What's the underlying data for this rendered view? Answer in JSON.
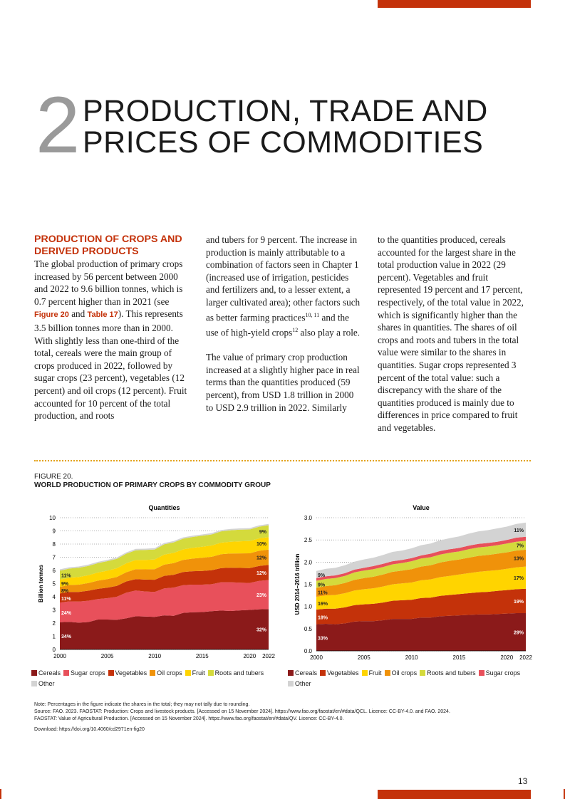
{
  "chapter": {
    "number": "2",
    "title_line1": "PRODUCTION, TRADE AND",
    "title_line2": "PRICES OF COMMODITIES"
  },
  "section_heading": "PRODUCTION OF CROPS AND DERIVED PRODUCTS",
  "columns": {
    "col1_before": "The global production of primary crops increased by 56 percent between 2000 and 2022 to 9.6 billion tonnes, which is 0.7 percent higher than in 2021 (see ",
    "ref_figure": "Figure 20",
    "ref_and": " and ",
    "ref_table": "Table 17",
    "col1_after": "). This represents 3.5 billion tonnes more than in 2000. With slightly less than one-third of the total, cereals were the main group of crops produced in 2022, followed by sugar crops (23 percent), vegetables (12 percent) and oil crops (12 percent). Fruit accounted for 10 percent of the total production, and roots",
    "col2_p1_before": "and tubers for 9 percent. The increase in production is mainly attributable to a combination of factors seen in Chapter 1 (increased use of irrigation, pesticides and fertilizers and, to a lesser extent, a larger cultivated area); other factors such as better farming practices",
    "sup1": "10, 11",
    "col2_p1_mid": " and the use of high-yield crops",
    "sup2": "12",
    "col2_p1_after": " also play a role.",
    "col2_p2": "The value of primary crop production increased at a slightly higher pace in real terms than the quantities produced (59 percent), from USD 1.8 trillion in 2000 to USD 2.9 trillion in 2022. Similarly",
    "col3": "to the quantities produced, cereals accounted for the largest share in the total production value in 2022 (29 percent). Vegetables and fruit represented 19 percent and 17 percent, respectively, of the total value in 2022, which is significantly higher than the shares in quantities. The shares of oil crops and roots and tubers in the total value were similar to the shares in quantities. Sugar crops represented 3 percent of the total value: such a discrepancy with the share of the quantities produced is mainly due to differences in price compared to fruit and vegetables."
  },
  "figure": {
    "label": "FIGURE 20.",
    "title": "WORLD PRODUCTION OF PRIMARY CROPS BY COMMODITY GROUP",
    "note": "Note: Percentages in the figure indicate the shares in the total; they may not tally due to rounding.",
    "source1": "Source: FAO. 2023. FAOSTAT: Production: Crops and livestock products. [Accessed on 15 November 2024]. https://www.fao.org/faostat/en/#data/QCL. Licence: CC-BY-4.0. and FAO. 2024.",
    "source2": "FAOSTAT: Value of Agricultural Production. [Accessed on 15 November 2024]. https://www.fao.org/faostat/en/#data/QV. Licence: CC-BY-4.0.",
    "download": "Download: https://doi.org/10.4060/cd2971en-fig20"
  },
  "page_number": "13",
  "colors": {
    "Cereals": "#8b1a1a",
    "Sugar crops": "#e8505b",
    "Vegetables": "#c4320a",
    "Oil crops": "#f0920a",
    "Fruit": "#ffd400",
    "Roots and tubers": "#d4da3c",
    "Other": "#d3d3d3"
  },
  "chart_data": [
    {
      "type": "area",
      "title": "Quantities",
      "ylabel": "Billion tonnes",
      "xlabel": "",
      "ylim": [
        0,
        10
      ],
      "yticks": [
        "0",
        "1",
        "2",
        "3",
        "4",
        "5",
        "6",
        "7",
        "8",
        "9",
        "10"
      ],
      "xticks": [
        "2000",
        "2005",
        "2010",
        "2015",
        "2020",
        "2022"
      ],
      "x": [
        2000,
        2001,
        2002,
        2003,
        2004,
        2005,
        2006,
        2007,
        2008,
        2009,
        2010,
        2011,
        2012,
        2013,
        2014,
        2015,
        2016,
        2017,
        2018,
        2019,
        2020,
        2021,
        2022
      ],
      "series": [
        {
          "name": "Cereals",
          "values": [
            2.07,
            2.1,
            2.03,
            2.08,
            2.27,
            2.27,
            2.25,
            2.36,
            2.52,
            2.5,
            2.47,
            2.59,
            2.55,
            2.78,
            2.82,
            2.84,
            2.9,
            2.95,
            2.92,
            2.97,
            3.0,
            3.05,
            3.07
          ],
          "start_label": "34%",
          "end_label": "32%"
        },
        {
          "name": "Sugar crops",
          "values": [
            1.48,
            1.55,
            1.6,
            1.62,
            1.55,
            1.62,
            1.75,
            1.95,
            1.95,
            1.9,
            1.9,
            2.05,
            2.15,
            2.1,
            2.1,
            2.08,
            2.05,
            2.15,
            2.18,
            2.1,
            2.05,
            2.15,
            2.2
          ],
          "start_label": "24%",
          "end_label": "23%"
        },
        {
          "name": "Vegetables",
          "values": [
            0.7,
            0.72,
            0.74,
            0.76,
            0.78,
            0.8,
            0.82,
            0.85,
            0.87,
            0.9,
            0.92,
            0.95,
            0.97,
            1.0,
            1.02,
            1.04,
            1.06,
            1.08,
            1.1,
            1.12,
            1.13,
            1.14,
            1.15
          ],
          "start_label": "11%",
          "end_label": "12%"
        },
        {
          "name": "Oil crops",
          "values": [
            0.5,
            0.52,
            0.55,
            0.58,
            0.62,
            0.65,
            0.68,
            0.7,
            0.75,
            0.78,
            0.8,
            0.85,
            0.88,
            0.92,
            0.96,
            1.0,
            1.02,
            1.05,
            1.08,
            1.1,
            1.12,
            1.15,
            1.16
          ],
          "start_label": "8%",
          "end_label": "12%"
        },
        {
          "name": "Fruit",
          "values": [
            0.55,
            0.56,
            0.58,
            0.6,
            0.62,
            0.64,
            0.66,
            0.68,
            0.7,
            0.72,
            0.74,
            0.76,
            0.78,
            0.8,
            0.82,
            0.84,
            0.86,
            0.88,
            0.9,
            0.92,
            0.93,
            0.94,
            0.95
          ],
          "start_label": "9%",
          "end_label": "10%"
        },
        {
          "name": "Roots and tubers",
          "values": [
            0.68,
            0.69,
            0.7,
            0.7,
            0.71,
            0.72,
            0.72,
            0.73,
            0.74,
            0.75,
            0.76,
            0.78,
            0.8,
            0.81,
            0.82,
            0.83,
            0.84,
            0.86,
            0.87,
            0.88,
            0.88,
            0.89,
            0.9
          ],
          "start_label": "11%",
          "end_label": "9%"
        },
        {
          "name": "Other",
          "values": [
            0.1,
            0.1,
            0.1,
            0.1,
            0.1,
            0.1,
            0.1,
            0.1,
            0.1,
            0.1,
            0.1,
            0.1,
            0.1,
            0.1,
            0.1,
            0.1,
            0.1,
            0.1,
            0.1,
            0.1,
            0.1,
            0.1,
            0.1
          ]
        }
      ],
      "legend": [
        "Cereals",
        "Sugar crops",
        "Vegetables",
        "Oil crops",
        "Fruit",
        "Roots and tubers",
        "Other"
      ],
      "grid": "horizontal dotted"
    },
    {
      "type": "area",
      "title": "Value",
      "ylabel": "USD 2014–2016 trillion",
      "xlabel": "",
      "ylim": [
        0,
        3.0
      ],
      "yticks": [
        "0.0",
        "0.5",
        "1.0",
        "1.5",
        "2.0",
        "2.5",
        "3.0"
      ],
      "xticks": [
        "2000",
        "2005",
        "2010",
        "2015",
        "2020",
        "2022"
      ],
      "x": [
        2000,
        2001,
        2002,
        2003,
        2004,
        2005,
        2006,
        2007,
        2008,
        2009,
        2010,
        2011,
        2012,
        2013,
        2014,
        2015,
        2016,
        2017,
        2018,
        2019,
        2020,
        2021,
        2022
      ],
      "series": [
        {
          "name": "Cereals",
          "values": [
            0.6,
            0.61,
            0.6,
            0.62,
            0.66,
            0.67,
            0.67,
            0.69,
            0.72,
            0.72,
            0.72,
            0.75,
            0.75,
            0.78,
            0.79,
            0.8,
            0.81,
            0.82,
            0.82,
            0.83,
            0.84,
            0.85,
            0.85
          ],
          "start_label": "33%",
          "end_label": "29%"
        },
        {
          "name": "Vegetables",
          "values": [
            0.33,
            0.34,
            0.35,
            0.36,
            0.37,
            0.38,
            0.39,
            0.4,
            0.41,
            0.42,
            0.43,
            0.44,
            0.45,
            0.46,
            0.47,
            0.48,
            0.49,
            0.5,
            0.51,
            0.52,
            0.53,
            0.54,
            0.55
          ],
          "start_label": "18%",
          "end_label": "19%"
        },
        {
          "name": "Fruit",
          "values": [
            0.29,
            0.3,
            0.31,
            0.32,
            0.33,
            0.34,
            0.35,
            0.36,
            0.37,
            0.38,
            0.39,
            0.4,
            0.41,
            0.42,
            0.43,
            0.44,
            0.45,
            0.46,
            0.47,
            0.47,
            0.48,
            0.49,
            0.5
          ],
          "start_label": "16%",
          "end_label": "17%"
        },
        {
          "name": "Oil crops",
          "values": [
            0.2,
            0.21,
            0.22,
            0.23,
            0.24,
            0.25,
            0.26,
            0.27,
            0.28,
            0.29,
            0.3,
            0.31,
            0.32,
            0.33,
            0.34,
            0.34,
            0.35,
            0.36,
            0.36,
            0.37,
            0.37,
            0.38,
            0.38
          ],
          "start_label": "11%",
          "end_label": "13%"
        },
        {
          "name": "Roots and tubers",
          "values": [
            0.16,
            0.16,
            0.16,
            0.16,
            0.17,
            0.17,
            0.17,
            0.17,
            0.17,
            0.17,
            0.18,
            0.18,
            0.18,
            0.18,
            0.18,
            0.18,
            0.19,
            0.19,
            0.19,
            0.19,
            0.2,
            0.2,
            0.2
          ],
          "start_label": "9%",
          "end_label": "7%"
        },
        {
          "name": "Sugar crops",
          "values": [
            0.06,
            0.06,
            0.06,
            0.06,
            0.06,
            0.06,
            0.07,
            0.07,
            0.07,
            0.07,
            0.07,
            0.07,
            0.08,
            0.08,
            0.08,
            0.08,
            0.08,
            0.08,
            0.08,
            0.08,
            0.08,
            0.09,
            0.09
          ]
        },
        {
          "name": "Other",
          "values": [
            0.16,
            0.17,
            0.17,
            0.18,
            0.18,
            0.19,
            0.19,
            0.2,
            0.21,
            0.21,
            0.22,
            0.23,
            0.23,
            0.24,
            0.25,
            0.26,
            0.27,
            0.28,
            0.29,
            0.3,
            0.3,
            0.31,
            0.32
          ],
          "start_label": "9%",
          "end_label": "11%"
        }
      ],
      "legend": [
        "Cereals",
        "Vegetables",
        "Fruit",
        "Oil crops",
        "Roots and tubers",
        "Sugar crops",
        "Other"
      ],
      "grid": "horizontal dotted"
    }
  ]
}
